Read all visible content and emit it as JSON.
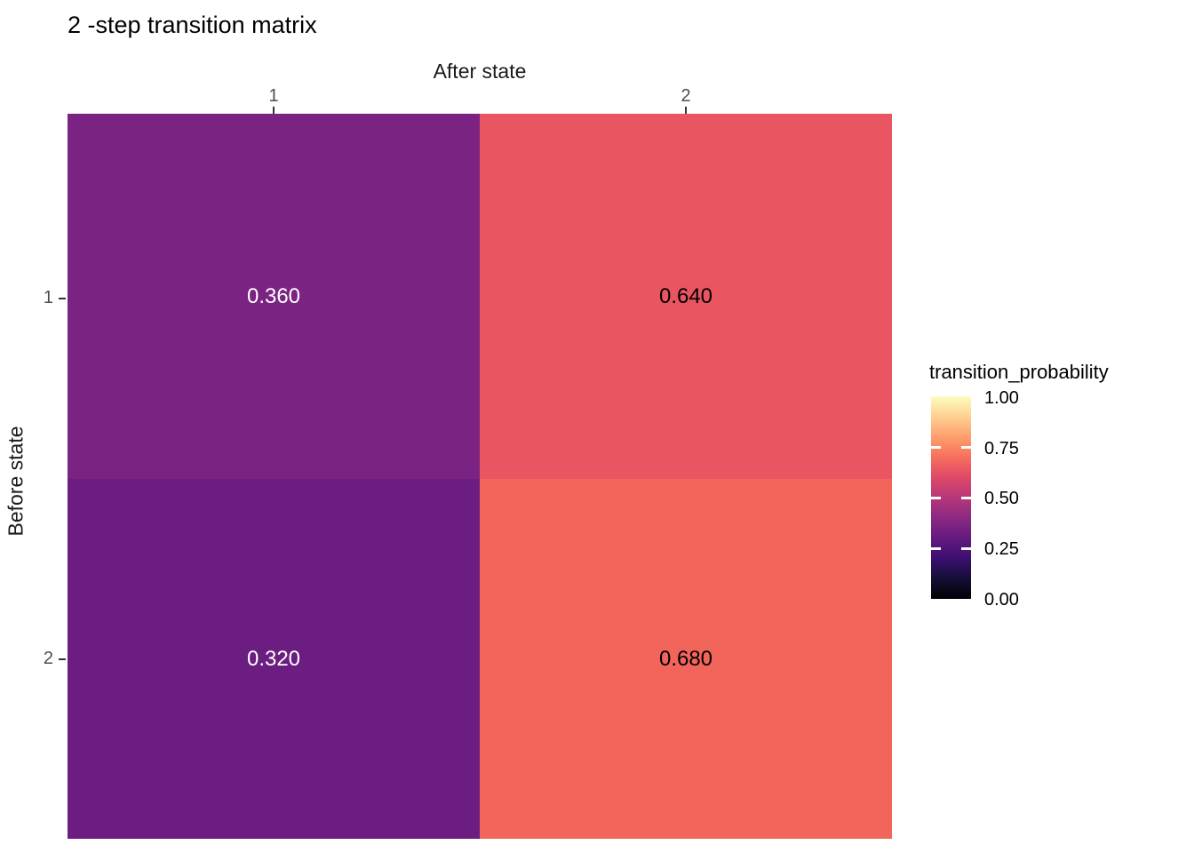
{
  "chart_data": {
    "type": "heatmap",
    "title": "2 -step transition matrix",
    "xlabel": "After state",
    "ylabel": "Before state",
    "x_tick_labels": [
      "1",
      "2"
    ],
    "y_tick_labels": [
      "1",
      "2"
    ],
    "x_axis_position": "top",
    "grid": false,
    "values": [
      [
        0.36,
        0.64
      ],
      [
        0.32,
        0.68
      ]
    ],
    "cells": [
      {
        "before_state": "1",
        "after_state": "1",
        "value": 0.36,
        "label": "0.360",
        "color": "#7B2382",
        "text_color": "#ffffff"
      },
      {
        "before_state": "1",
        "after_state": "2",
        "value": 0.64,
        "label": "0.640",
        "color": "#E95560",
        "text_color": "#000000"
      },
      {
        "before_state": "2",
        "after_state": "1",
        "value": 0.32,
        "label": "0.320",
        "color": "#6C1D81",
        "text_color": "#ffffff"
      },
      {
        "before_state": "2",
        "after_state": "2",
        "value": 0.68,
        "label": "0.680",
        "color": "#F2655A",
        "text_color": "#000000"
      }
    ],
    "legend": {
      "title": "transition_probability",
      "position": "right",
      "range": [
        0.0,
        1.0
      ],
      "tick_labels": [
        "1.00",
        "0.75",
        "0.50",
        "0.25",
        "0.00"
      ],
      "colormap": "magma",
      "gradient_stops_bottom_to_top": [
        "#000004",
        "#150f36",
        "#3b0f70",
        "#641a80",
        "#8c2981",
        "#b73779",
        "#de4968",
        "#f7705c",
        "#fe9f6d",
        "#fecf92",
        "#fcfdbf"
      ],
      "tick_color": "#ffffff"
    },
    "colors": {
      "background": "#ffffff",
      "title_text": "#000000",
      "axis_title_text": "#1a1a1a",
      "axis_tick_text": "#4d4d4d",
      "axis_tick_mark": "#333333"
    }
  }
}
